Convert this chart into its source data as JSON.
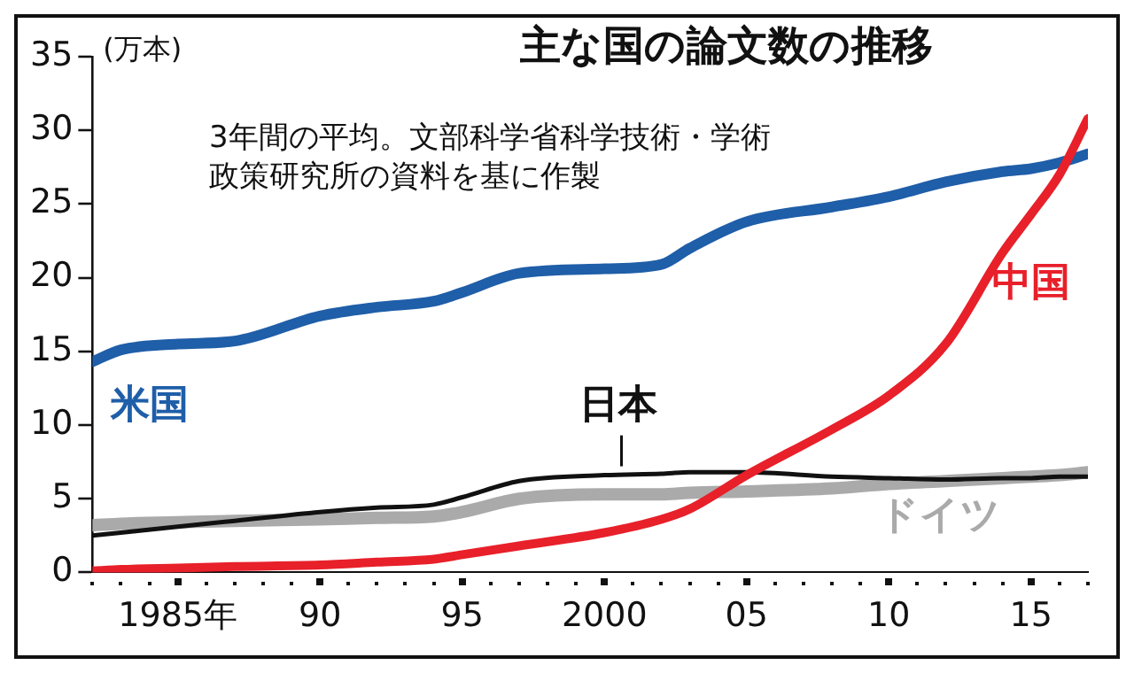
{
  "chart_data": {
    "type": "line",
    "title": "主な国の論文数の推移",
    "ylabel": "(万本)",
    "annotations": [
      "3年間の平均。文部科学省科学技術・学術政策研究所の資料を基に作製"
    ],
    "x": [
      1982,
      1983,
      1985,
      1987,
      1990,
      1992,
      1994,
      1995,
      1997,
      2000,
      2002,
      2003,
      2005,
      2008,
      2010,
      2012,
      2014,
      2015,
      2016,
      2017
    ],
    "series": [
      {
        "name": "ドイツ",
        "color": "#aaaaaa",
        "values": [
          3.2,
          3.3,
          3.4,
          3.5,
          3.6,
          3.7,
          3.8,
          4.1,
          5.0,
          5.3,
          5.3,
          5.4,
          5.5,
          5.7,
          6.0,
          6.2,
          6.4,
          6.5,
          6.6,
          6.8
        ]
      },
      {
        "name": "日本",
        "color": "#111111",
        "values": [
          2.5,
          2.7,
          3.1,
          3.5,
          4.1,
          4.4,
          4.6,
          5.1,
          6.2,
          6.6,
          6.7,
          6.8,
          6.8,
          6.5,
          6.4,
          6.3,
          6.4,
          6.4,
          6.5,
          6.5
        ]
      },
      {
        "name": "米国",
        "color": "#1f5ea8",
        "values": [
          14.3,
          15.1,
          15.5,
          15.7,
          17.4,
          18.0,
          18.4,
          19.0,
          20.3,
          20.6,
          20.9,
          22.0,
          23.8,
          24.8,
          25.5,
          26.5,
          27.2,
          27.4,
          27.8,
          28.4
        ]
      },
      {
        "name": "中国",
        "color": "#e8202a",
        "values": [
          0.1,
          0.2,
          0.3,
          0.4,
          0.5,
          0.7,
          0.9,
          1.2,
          1.8,
          2.7,
          3.6,
          4.3,
          6.6,
          9.7,
          12.0,
          15.5,
          21.7,
          24.3,
          27.0,
          30.8
        ]
      }
    ],
    "xlim": [
      1982,
      2017
    ],
    "xticks": [
      {
        "value": 1982,
        "label": null
      },
      {
        "value": 1983,
        "label": null
      },
      {
        "value": 1984,
        "label": null
      },
      {
        "value": 1985,
        "label": "1985年"
      },
      {
        "value": 1986,
        "label": null
      },
      {
        "value": 1987,
        "label": null
      },
      {
        "value": 1988,
        "label": null
      },
      {
        "value": 1989,
        "label": null
      },
      {
        "value": 1990,
        "label": "90"
      },
      {
        "value": 1991,
        "label": null
      },
      {
        "value": 1992,
        "label": null
      },
      {
        "value": 1993,
        "label": null
      },
      {
        "value": 1994,
        "label": null
      },
      {
        "value": 1995,
        "label": "95"
      },
      {
        "value": 1996,
        "label": null
      },
      {
        "value": 1997,
        "label": null
      },
      {
        "value": 1998,
        "label": null
      },
      {
        "value": 1999,
        "label": null
      },
      {
        "value": 2000,
        "label": "2000"
      },
      {
        "value": 2001,
        "label": null
      },
      {
        "value": 2002,
        "label": null
      },
      {
        "value": 2003,
        "label": null
      },
      {
        "value": 2004,
        "label": null
      },
      {
        "value": 2005,
        "label": "05"
      },
      {
        "value": 2006,
        "label": null
      },
      {
        "value": 2007,
        "label": null
      },
      {
        "value": 2008,
        "label": null
      },
      {
        "value": 2009,
        "label": null
      },
      {
        "value": 2010,
        "label": "10"
      },
      {
        "value": 2011,
        "label": null
      },
      {
        "value": 2012,
        "label": null
      },
      {
        "value": 2013,
        "label": null
      },
      {
        "value": 2014,
        "label": null
      },
      {
        "value": 2015,
        "label": "15"
      },
      {
        "value": 2016,
        "label": null
      },
      {
        "value": 2017,
        "label": null
      }
    ],
    "ylim": [
      0,
      35
    ],
    "yticks": [
      0,
      5,
      10,
      15,
      20,
      25,
      30,
      35
    ],
    "grid": false,
    "legend": false,
    "marker": "none",
    "line_style": "solid"
  }
}
